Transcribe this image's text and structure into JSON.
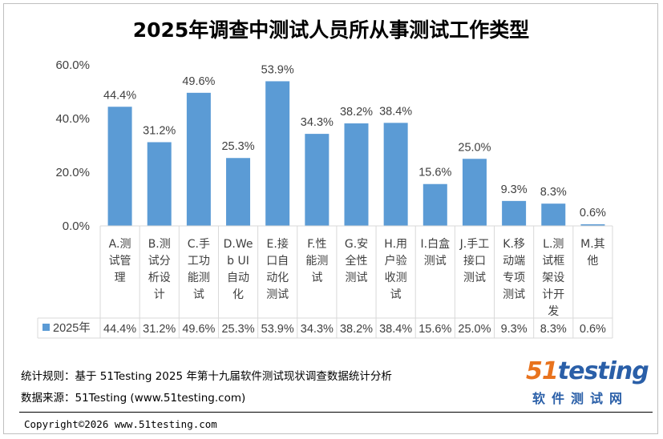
{
  "chart_data": {
    "type": "bar",
    "title": "2025年调查中测试人员所从事测试工作类型",
    "series": [
      {
        "name": "2025年",
        "color": "#5b9bd5",
        "values": [
          44.4,
          31.2,
          49.6,
          25.3,
          53.9,
          34.3,
          38.2,
          38.4,
          15.6,
          25.0,
          9.3,
          8.3,
          0.6
        ],
        "value_labels": [
          "44.4%",
          "31.2%",
          "49.6%",
          "25.3%",
          "53.9%",
          "34.3%",
          "38.2%",
          "38.4%",
          "15.6%",
          "25.0%",
          "9.3%",
          "8.3%",
          "0.6%"
        ]
      }
    ],
    "categories": [
      "A.测试管理",
      "B.测试分析设计",
      "C.手工功能测试",
      "D.Web UI自动化",
      "E.接口自动化测试",
      "F.性能测试",
      "G.安全性测试",
      "H.用户验收测试",
      "I.白盒测试",
      "J.手工接口测试",
      "K.移动端专项测试",
      "L.测试框架设计开发",
      "M.其他"
    ],
    "category_lines": [
      [
        "A.测",
        "试管",
        "理"
      ],
      [
        "B.测",
        "试分",
        "析设",
        "计"
      ],
      [
        "C.手",
        "工功",
        "能测",
        "试"
      ],
      [
        "D.We",
        "b UI",
        "自动",
        "化"
      ],
      [
        "E.接",
        "口自",
        "动化",
        "测试"
      ],
      [
        "F.性",
        "能测",
        "试"
      ],
      [
        "G.安",
        "全性",
        "测试"
      ],
      [
        "H.用",
        "户验",
        "收测",
        "试"
      ],
      [
        "I.白盒",
        "测试"
      ],
      [
        "J.手工",
        "接口",
        "测试"
      ],
      [
        "K.移",
        "动端",
        "专项",
        "测试"
      ],
      [
        "L.测",
        "试框",
        "架设",
        "计开",
        "发"
      ],
      [
        "M.其",
        "他"
      ]
    ],
    "ylim": [
      0,
      60
    ],
    "yticks": [
      0,
      20,
      40,
      60
    ],
    "ytick_labels": [
      "0.0%",
      "20.0%",
      "40.0%",
      "60.0%"
    ],
    "xlabel": "",
    "ylabel": "",
    "grid": false,
    "legend": "data-table"
  },
  "footer": {
    "rule_text": "统计规则：基于 51Testing 2025 年第十九届软件测试现状调查数据统计分析",
    "source_text": "数据来源：51Testing (www.51testing.com)",
    "copyright": "Copyright©2026 www.51testing.com"
  },
  "logo": {
    "top_51": "51",
    "top_testing": "testing",
    "bottom": "软件测试网",
    "color_orange": "#e8731e",
    "color_blue": "#2a5fa8"
  }
}
